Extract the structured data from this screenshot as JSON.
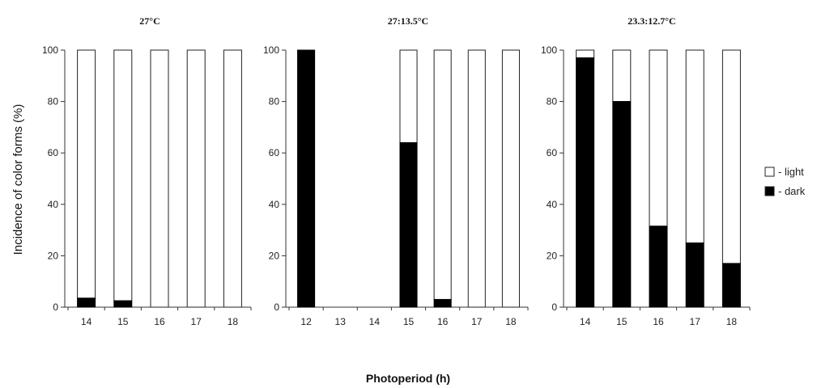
{
  "chart_data": {
    "type": "bar",
    "stacked": true,
    "ylabel": "Incidence of color forms (%)",
    "xlabel": "Photoperiod (h)",
    "ylim": [
      0,
      100
    ],
    "yticks": [
      "0",
      "20",
      "40",
      "60",
      "80",
      "100"
    ],
    "legend": {
      "placement": "right",
      "entries": [
        {
          "label": "- light",
          "color": "#ffffff"
        },
        {
          "label": "- dark",
          "color": "#000000"
        }
      ]
    },
    "panels": [
      {
        "title": "27°C",
        "categories": [
          "14",
          "15",
          "16",
          "17",
          "18"
        ],
        "series": [
          {
            "name": "dark",
            "values": [
              3.5,
              2.5,
              0,
              0,
              0
            ]
          },
          {
            "name": "light",
            "values": [
              96.5,
              97.5,
              100,
              100,
              100
            ]
          }
        ]
      },
      {
        "title": "27:13.5°C",
        "categories": [
          "12",
          "13",
          "14",
          "15",
          "16",
          "17",
          "18"
        ],
        "series": [
          {
            "name": "dark",
            "values": [
              100,
              null,
              null,
              64,
              3,
              0,
              0
            ]
          },
          {
            "name": "light",
            "values": [
              0,
              null,
              null,
              36,
              97,
              100,
              100
            ]
          }
        ]
      },
      {
        "title": "23.3:12.7°C",
        "categories": [
          "14",
          "15",
          "16",
          "17",
          "18"
        ],
        "series": [
          {
            "name": "dark",
            "values": [
              97,
              80,
              31.5,
              25,
              17
            ]
          },
          {
            "name": "light",
            "values": [
              3,
              20,
              68.5,
              75,
              83
            ]
          }
        ]
      }
    ]
  }
}
